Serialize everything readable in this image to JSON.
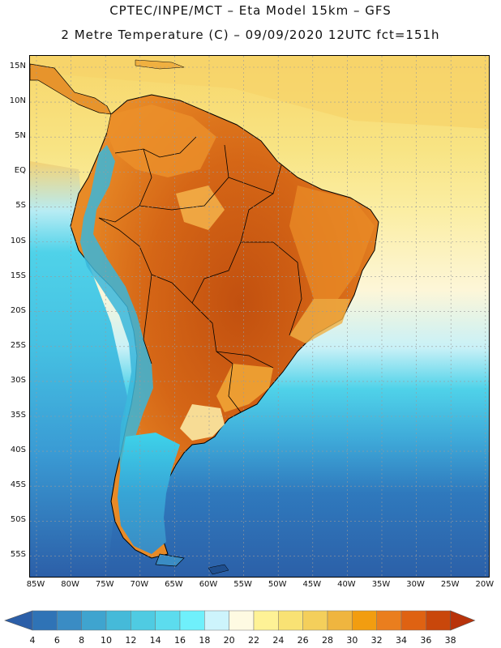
{
  "header": {
    "title_line1": "CPTEC/INPE/MCT –  Eta Model 15km – GFS",
    "title_line2": "2 Metre Temperature (C) – 09/09/2020 12UTC fct=151h"
  },
  "map": {
    "variable": "2 Metre Temperature",
    "unit": "C",
    "lat_labels": [
      "15N",
      "10N",
      "5N",
      "EQ",
      "5S",
      "10S",
      "15S",
      "20S",
      "25S",
      "30S",
      "35S",
      "40S",
      "45S",
      "50S",
      "55S"
    ],
    "lon_labels": [
      "85W",
      "80W",
      "75W",
      "70W",
      "65W",
      "60W",
      "55W",
      "50W",
      "45W",
      "40W",
      "35W",
      "30W",
      "25W",
      "20W"
    ],
    "colors": {
      "ocean_deep": "#2c6cb2",
      "ocean_mid": "#3e9bd0",
      "ocean_cyan": "#4fd2e9",
      "ocean_light": "#c9f1f7",
      "ocean_warm": "#f6e07a",
      "land_hot": "#c2500f",
      "land_warm": "#e27a1a",
      "land_mild": "#f0a530",
      "andes": "#3ab6da",
      "border": "#000000",
      "grid": "#9a9a9a"
    }
  },
  "legend": {
    "ticks": [
      "4",
      "6",
      "8",
      "10",
      "12",
      "14",
      "16",
      "18",
      "20",
      "22",
      "24",
      "26",
      "28",
      "30",
      "32",
      "34",
      "36",
      "38"
    ],
    "colors": [
      "#2c5fa8",
      "#2f73b6",
      "#3a8cc4",
      "#3fa4cf",
      "#45bad9",
      "#4fcbe2",
      "#5cdcee",
      "#6ff0fb",
      "#cdf4fc",
      "#fefae2",
      "#fef296",
      "#f9e274",
      "#f4cf5b",
      "#efb53f",
      "#f29d10",
      "#ea7e1e",
      "#df6212",
      "#c9470b",
      "#b8330b"
    ]
  }
}
